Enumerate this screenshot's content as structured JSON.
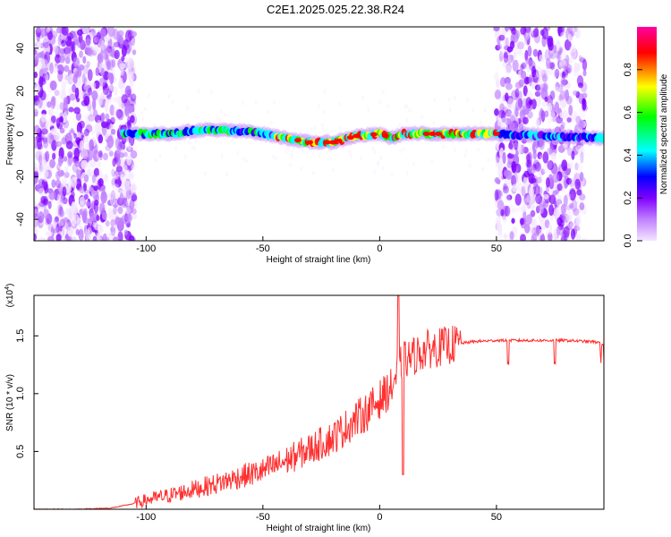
{
  "title": "C2E1.2025.025.22.38.R24",
  "chart_data": [
    {
      "type": "heatmap",
      "xlabel": "Height of straight line (km)",
      "ylabel": "Frequency (Hz)",
      "xlim": [
        -148,
        96
      ],
      "ylim": [
        -50,
        50
      ],
      "xticks": [
        "-100",
        "-50",
        "0",
        "50"
      ],
      "yticks": [
        "-40",
        "-20",
        "0",
        "20",
        "40"
      ],
      "colorbar": {
        "label": "Normalized spectral amplitude",
        "range": [
          0,
          1
        ],
        "ticks": [
          "0.0",
          "0.2",
          "0.4",
          "0.6",
          "0.8"
        ],
        "colormap": [
          "#f4e6ff",
          "#c080ff",
          "#8000ff",
          "#0000ff",
          "#00ffff",
          "#00ff00",
          "#ffff00",
          "#ff0000",
          "#ff00a0"
        ]
      },
      "main_signal_frequency": [
        {
          "x": -110,
          "y": 0
        },
        {
          "x": -90,
          "y": 0
        },
        {
          "x": -75,
          "y": 2
        },
        {
          "x": -55,
          "y": 1
        },
        {
          "x": -40,
          "y": -2
        },
        {
          "x": -30,
          "y": -4
        },
        {
          "x": -20,
          "y": -4
        },
        {
          "x": -10,
          "y": -1
        },
        {
          "x": 0,
          "y": 0
        },
        {
          "x": 5,
          "y": -2
        },
        {
          "x": 10,
          "y": 0
        },
        {
          "x": 30,
          "y": 0
        },
        {
          "x": 50,
          "y": 0
        },
        {
          "x": 70,
          "y": -1
        },
        {
          "x": 96,
          "y": -2
        }
      ],
      "noise_regions": [
        [
          -148,
          -105
        ],
        [
          50,
          88
        ]
      ]
    },
    {
      "type": "line",
      "xlabel": "Height of straight line (km)",
      "ylabel": "SNR (10 * v/v)",
      "yunit": "(x10^4)",
      "yunit_base": "(x10",
      "yunit_exp": "4",
      "yunit_close": ")",
      "xlim": [
        -148,
        96
      ],
      "ylim": [
        0,
        1.85
      ],
      "xticks": [
        "-100",
        "-50",
        "0",
        "50"
      ],
      "yticks": [
        "0.5",
        "1.0",
        "1.5"
      ],
      "series": [
        {
          "color": "#ff3030",
          "x": [
            -148,
            -130,
            -115,
            -105,
            -100,
            -90,
            -80,
            -70,
            -60,
            -50,
            -40,
            -30,
            -20,
            -10,
            -5,
            0,
            5,
            8,
            10,
            12,
            20,
            30,
            40,
            50,
            60,
            70,
            80,
            90,
            96
          ],
          "y": [
            0.0,
            0.0,
            0.01,
            0.05,
            0.08,
            0.12,
            0.17,
            0.22,
            0.28,
            0.33,
            0.42,
            0.52,
            0.62,
            0.78,
            0.85,
            0.95,
            1.05,
            1.2,
            1.28,
            1.3,
            1.38,
            1.42,
            1.45,
            1.46,
            1.46,
            1.46,
            1.46,
            1.45,
            1.44
          ]
        }
      ]
    }
  ]
}
